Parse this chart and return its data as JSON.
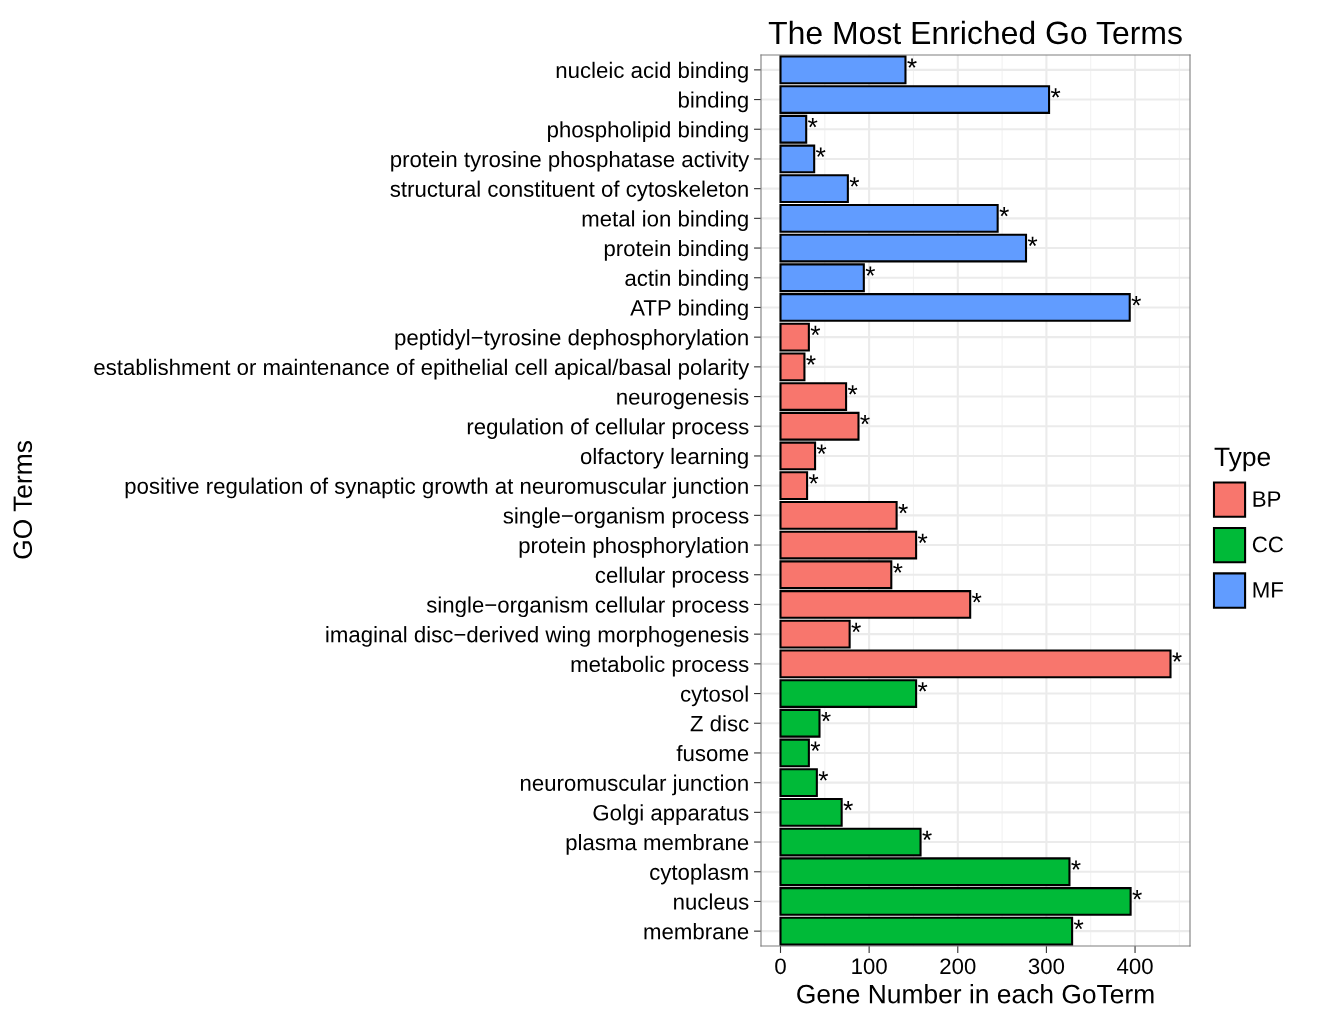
{
  "chart_data": {
    "type": "bar",
    "orientation": "horizontal",
    "title": "The Most Enriched Go Terms",
    "xlabel": "Gene Number in each GoTerm",
    "ylabel": "GO Terms",
    "legend_title": "Type",
    "legend": "right",
    "grid": true,
    "categories": [
      "nucleic acid binding",
      "binding",
      "phospholipid binding",
      "protein tyrosine phosphatase activity",
      "structural constituent of cytoskeleton",
      "metal ion binding",
      "protein binding",
      "actin binding",
      "ATP binding",
      "peptidyl−tyrosine dephosphorylation",
      "establishment or maintenance of epithelial cell apical/basal polarity",
      "neurogenesis",
      "regulation of cellular process",
      "olfactory learning",
      "positive regulation of synaptic growth at neuromuscular junction",
      "single−organism process",
      "protein phosphorylation",
      "cellular process",
      "single−organism cellular process",
      "imaginal disc−derived wing morphogenesis",
      "metabolic process",
      "cytosol",
      "Z disc",
      "fusome",
      "neuromuscular junction",
      "Golgi apparatus",
      "plasma membrane",
      "cytoplasm",
      "nucleus",
      "membrane"
    ],
    "xlim": [
      -22,
      462
    ],
    "xticks": [
      0,
      100,
      200,
      300,
      400
    ],
    "series": [
      {
        "name": "BP",
        "color": "#f8766d",
        "values": [
          null,
          null,
          null,
          null,
          null,
          null,
          null,
          null,
          null,
          32,
          27,
          74,
          88,
          39,
          30,
          131,
          153,
          125,
          214,
          78,
          440,
          null,
          null,
          null,
          null,
          null,
          null,
          null,
          null,
          null
        ],
        "value_labels": [
          null,
          null,
          null,
          null,
          null,
          null,
          null,
          null,
          null,
          "*",
          "*",
          "*",
          "*",
          "*",
          "*",
          "*",
          "*",
          "*",
          "*",
          "*",
          "*",
          null,
          null,
          null,
          null,
          null,
          null,
          null,
          null,
          null
        ]
      },
      {
        "name": "CC",
        "color": "#00ba38",
        "values": [
          null,
          null,
          null,
          null,
          null,
          null,
          null,
          null,
          null,
          null,
          null,
          null,
          null,
          null,
          null,
          null,
          null,
          null,
          null,
          null,
          null,
          153,
          44,
          32,
          41,
          69,
          158,
          326,
          395,
          329
        ],
        "value_labels": [
          null,
          null,
          null,
          null,
          null,
          null,
          null,
          null,
          null,
          null,
          null,
          null,
          null,
          null,
          null,
          null,
          null,
          null,
          null,
          null,
          null,
          "*",
          "*",
          "*",
          "*",
          "*",
          "*",
          "*",
          "*",
          "*"
        ]
      },
      {
        "name": "MF",
        "color": "#619cff",
        "values": [
          141,
          303,
          29,
          38,
          76,
          245,
          277,
          94,
          394,
          null,
          null,
          null,
          null,
          null,
          null,
          null,
          null,
          null,
          null,
          null,
          null,
          null,
          null,
          null,
          null,
          null,
          null,
          null,
          null,
          null
        ],
        "value_labels": [
          "*",
          "*",
          "*",
          "*",
          "*",
          "*",
          "*",
          "*",
          "*",
          null,
          null,
          null,
          null,
          null,
          null,
          null,
          null,
          null,
          null,
          null,
          null,
          null,
          null,
          null,
          null,
          null,
          null,
          null,
          null,
          null
        ]
      }
    ]
  }
}
